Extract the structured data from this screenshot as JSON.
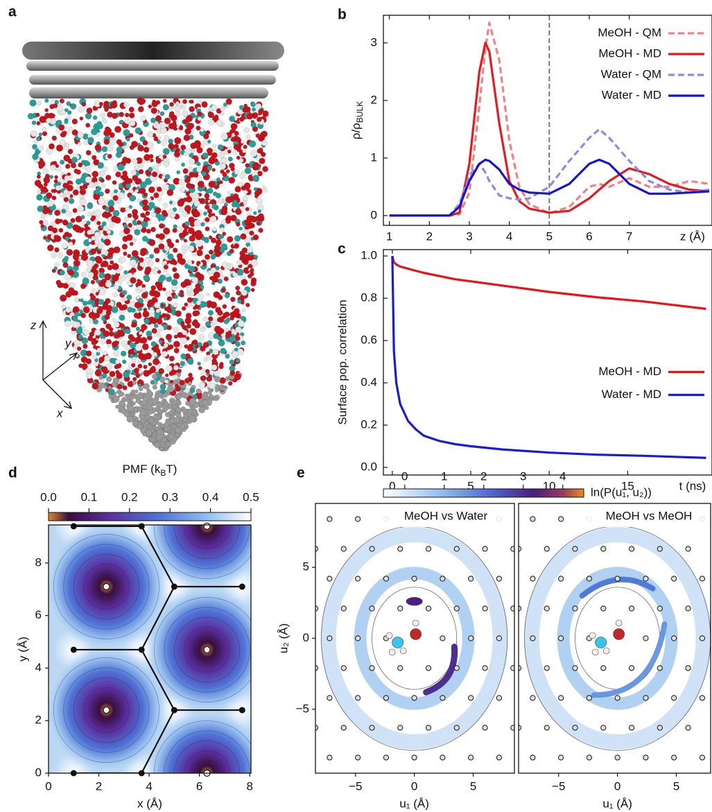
{
  "panel_a": {
    "label": "a",
    "axes": [
      "z",
      "y",
      "x"
    ]
  },
  "chart_data": [
    {
      "panel": "b",
      "type": "line",
      "ylabel": [
        "ρ/ρ",
        "BULK"
      ],
      "xlabel": "z (Å)",
      "x": [
        1,
        2,
        2.5,
        2.75,
        3,
        3.25,
        3.4,
        3.5,
        3.75,
        4,
        4.25,
        4.5,
        5,
        5.5,
        6,
        6.25,
        6.5,
        7,
        7.5,
        8,
        8.5,
        9
      ],
      "series": [
        {
          "name": "MeOH - QM",
          "color": "#f08282",
          "dash": true,
          "values": [
            0,
            0,
            0,
            0.02,
            0.4,
            1.9,
            2.9,
            3.35,
            2.7,
            1.3,
            0.5,
            0.2,
            0.04,
            0.15,
            0.5,
            0.55,
            0.5,
            0.65,
            0.5,
            0.5,
            0.6,
            0.55
          ]
        },
        {
          "name": "MeOH - MD",
          "color": "#e8191c",
          "dash": false,
          "values": [
            0,
            0,
            0,
            0.05,
            0.9,
            2.5,
            3.0,
            2.85,
            1.6,
            0.6,
            0.25,
            0.12,
            0.05,
            0.08,
            0.3,
            0.45,
            0.6,
            0.82,
            0.72,
            0.55,
            0.45,
            0.42
          ]
        },
        {
          "name": "Water - QM",
          "color": "#8a8ae8",
          "dash": true,
          "values": [
            0,
            0,
            0,
            0.2,
            0.7,
            0.9,
            0.75,
            0.6,
            0.35,
            0.3,
            0.28,
            0.3,
            0.5,
            0.95,
            1.35,
            1.5,
            1.35,
            0.95,
            0.6,
            0.45,
            0.4,
            0.45
          ]
        },
        {
          "name": "Water - MD",
          "color": "#1414d4",
          "dash": false,
          "values": [
            0,
            0,
            0,
            0.15,
            0.6,
            0.9,
            0.97,
            0.95,
            0.8,
            0.55,
            0.45,
            0.4,
            0.38,
            0.55,
            0.9,
            0.97,
            0.9,
            0.55,
            0.38,
            0.38,
            0.4,
            0.42
          ]
        }
      ],
      "xlim": [
        0.85,
        9
      ],
      "ylim": [
        -0.17,
        3.48
      ],
      "xticks": [
        1,
        2,
        3,
        4,
        5,
        6,
        7
      ],
      "yticks": [
        0,
        1,
        2,
        3
      ],
      "vlines": [
        5
      ],
      "legend": "upper right"
    },
    {
      "panel": "c",
      "type": "line",
      "ylabel": "Surface pop. correlation",
      "xlabel": "t (ns)",
      "x": [
        0,
        0.1,
        0.25,
        0.5,
        1,
        1.5,
        2,
        3,
        4,
        5,
        7,
        10,
        13,
        16,
        20
      ],
      "series": [
        {
          "name": "MeOH - MD",
          "color": "#ee1111",
          "dash": false,
          "values": [
            1.0,
            0.97,
            0.96,
            0.95,
            0.94,
            0.93,
            0.92,
            0.905,
            0.89,
            0.88,
            0.86,
            0.83,
            0.805,
            0.785,
            0.75
          ]
        },
        {
          "name": "Water - MD",
          "color": "#1a1ad8",
          "dash": false,
          "values": [
            1.0,
            0.55,
            0.4,
            0.3,
            0.22,
            0.18,
            0.15,
            0.125,
            0.11,
            0.1,
            0.085,
            0.07,
            0.06,
            0.055,
            0.045
          ]
        }
      ],
      "xlim": [
        -0.57,
        20.2
      ],
      "ylim": [
        -0.036,
        1.03
      ],
      "xticks": [
        0,
        5,
        10,
        15
      ],
      "yticks": [
        {
          "value": 0,
          "label": "0.0"
        },
        0.2,
        0.4,
        0.6,
        0.8,
        {
          "value": 1,
          "label": "1.0"
        }
      ],
      "legend": "center right"
    },
    {
      "panel": "d",
      "type": "contour",
      "xlabel": "x (Å)",
      "ylabel": "y (Å)",
      "xlim": [
        0,
        8.05
      ],
      "ylim": [
        0,
        9.45
      ],
      "xticks": [
        0,
        2,
        4,
        6,
        8
      ],
      "yticks": [
        0,
        2,
        4,
        6,
        8
      ],
      "minima": {
        "x": [
          2.3,
          6.3,
          2.3,
          6.3,
          6.3
        ],
        "y": [
          7.1,
          4.7,
          2.4,
          0,
          9.4
        ]
      },
      "vertices": {
        "x": [
          1,
          3.7,
          5,
          7.7,
          1,
          3.7,
          5,
          7.7,
          1,
          3.7
        ],
        "y": [
          9.4,
          9.4,
          7.1,
          7.1,
          4.7,
          4.7,
          2.4,
          2.4,
          0,
          0
        ]
      },
      "colorbar": {
        "label": [
          "PMF (k",
          "B",
          "T)"
        ],
        "lim": [
          0,
          0.5
        ],
        "ticks": [
          {
            "value": 0,
            "label": "0.0"
          },
          0.1,
          0.2,
          0.3,
          0.4,
          0.5
        ]
      }
    },
    {
      "panel": "e",
      "type": "density_map",
      "xlabel": "u₁ (Å)",
      "ylabel": "u₂ (Å)",
      "titles": [
        "MeOH vs Water",
        "MeOH vs MeOH"
      ],
      "xlim": [
        -8.4,
        8.5
      ],
      "ylim": [
        -9.5,
        9.5
      ],
      "xticks": [
        {
          "value": -5,
          "label": "−5"
        },
        0,
        5
      ],
      "yticks": [
        {
          "value": -5,
          "label": "−5"
        },
        0,
        5
      ],
      "colorbar": {
        "label": "ln(P(u₁, u₂))",
        "lim": [
          -0.54,
          4.53
        ],
        "ticks": [
          0,
          1,
          2,
          3,
          4
        ]
      }
    }
  ]
}
